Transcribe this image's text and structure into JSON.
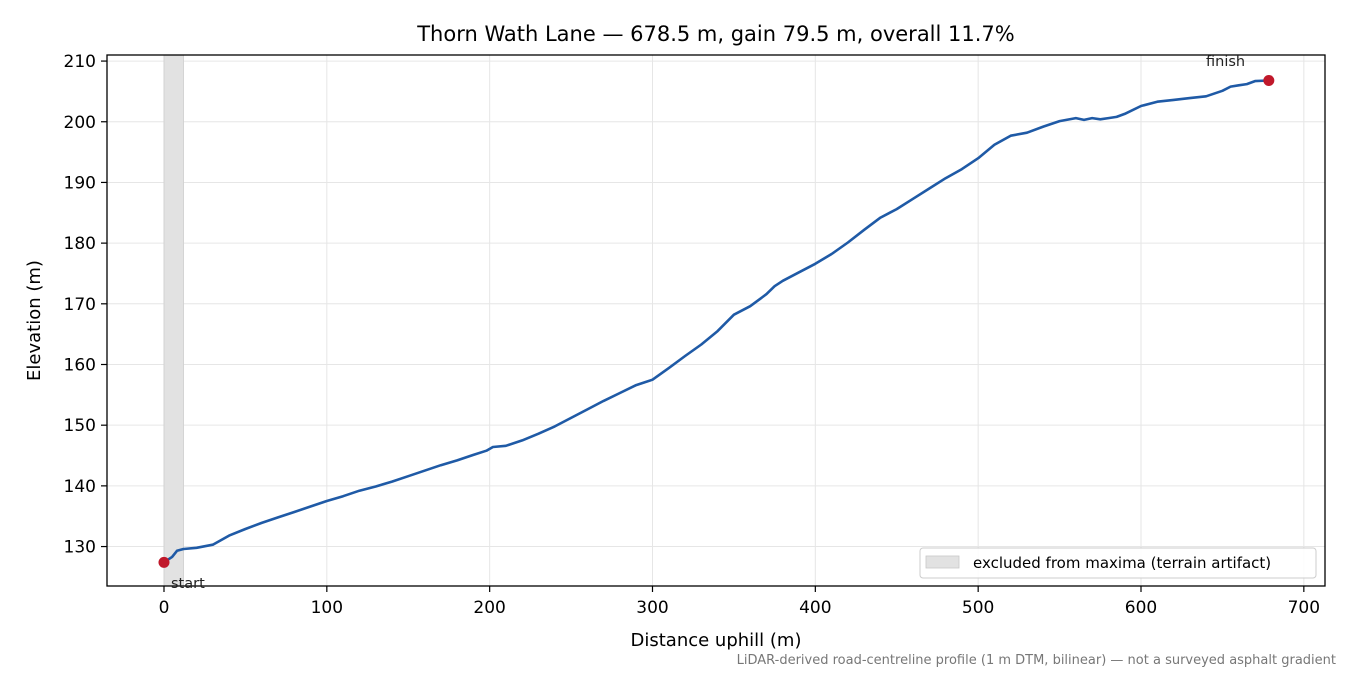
{
  "chart_data": {
    "type": "line",
    "title": "Thorn Wath Lane — 678.5 m, gain 79.5 m, overall 11.7%",
    "xlabel": "Distance uphill (m)",
    "ylabel": "Elevation (m)",
    "xlim": [
      -35,
      713
    ],
    "ylim": [
      123.5,
      211.0
    ],
    "xticks": [
      0,
      100,
      200,
      300,
      400,
      500,
      600,
      700
    ],
    "yticks": [
      130,
      140,
      150,
      160,
      170,
      180,
      190,
      200,
      210
    ],
    "grid": true,
    "legend_position": "lower-right",
    "legend": [
      "excluded from maxima (terrain artifact)"
    ],
    "excluded_span": [
      0,
      12
    ],
    "footnote": "LiDAR-derived road-centreline profile (1 m DTM, bilinear) — not a surveyed asphalt gradient",
    "colors": {
      "line": "#1f5aa6",
      "markers": "#c0182a",
      "excluded_fill": "#e2e2e2",
      "grid": "#e6e6e6"
    },
    "annotations": [
      {
        "text": "start",
        "x": 0,
        "y": 127.4
      },
      {
        "text": "finish",
        "x": 678.5,
        "y": 206.8
      }
    ],
    "series": [
      {
        "x": [
          0,
          5,
          8,
          12,
          20,
          30,
          40,
          50,
          60,
          70,
          80,
          90,
          100,
          110,
          120,
          130,
          140,
          150,
          160,
          170,
          180,
          190,
          198,
          202,
          210,
          220,
          230,
          240,
          250,
          260,
          270,
          280,
          290,
          300,
          310,
          320,
          330,
          340,
          350,
          360,
          370,
          375,
          380,
          390,
          400,
          410,
          420,
          430,
          440,
          450,
          460,
          470,
          480,
          490,
          500,
          510,
          520,
          530,
          540,
          550,
          560,
          565,
          570,
          575,
          580,
          585,
          590,
          600,
          610,
          620,
          630,
          640,
          650,
          655,
          660,
          665,
          670,
          678.5
        ],
        "y": [
          127.4,
          128.3,
          129.3,
          129.6,
          129.8,
          130.3,
          131.8,
          132.9,
          133.9,
          134.8,
          135.7,
          136.6,
          137.5,
          138.3,
          139.2,
          139.9,
          140.7,
          141.6,
          142.5,
          143.4,
          144.2,
          145.1,
          145.8,
          146.4,
          146.6,
          147.5,
          148.6,
          149.8,
          151.2,
          152.6,
          154.0,
          155.3,
          156.6,
          157.5,
          159.4,
          161.4,
          163.3,
          165.5,
          168.2,
          169.6,
          171.6,
          172.9,
          173.8,
          175.2,
          176.6,
          178.2,
          180.1,
          182.2,
          184.2,
          185.6,
          187.3,
          189.0,
          190.7,
          192.2,
          194.0,
          196.2,
          197.7,
          198.2,
          199.2,
          200.1,
          200.6,
          200.3,
          200.6,
          200.4,
          200.6,
          200.8,
          201.3,
          202.6,
          203.3,
          203.6,
          203.9,
          204.2,
          205.1,
          205.8,
          206.0,
          206.2,
          206.7,
          206.8
        ]
      }
    ]
  }
}
